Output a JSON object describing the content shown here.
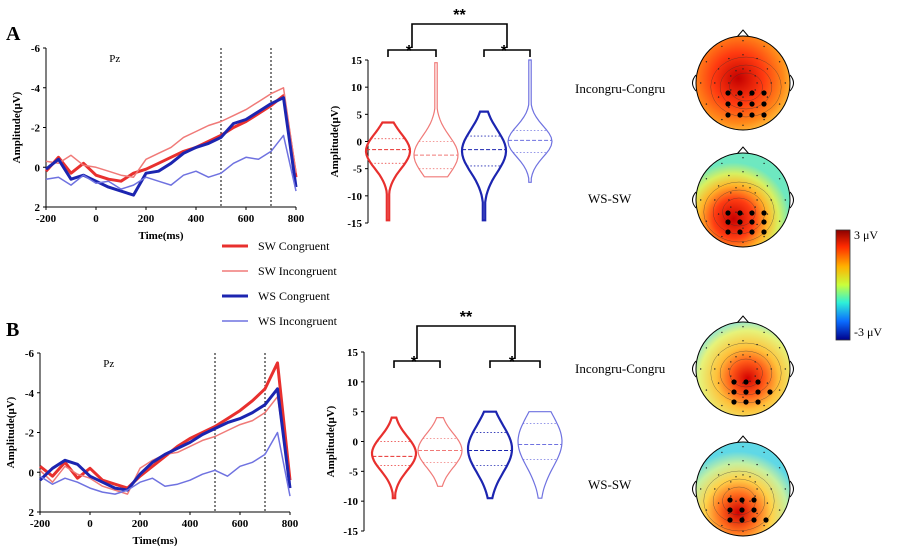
{
  "panels": {
    "A": {
      "letter": "A"
    },
    "B": {
      "letter": "B"
    }
  },
  "erp": {
    "electrode": "Pz",
    "xlabel": "Time(ms)",
    "ylabel": "Amplitude(μV)",
    "x_ticks": [
      "-200",
      "0",
      "200",
      "400",
      "600",
      "800"
    ],
    "y_ticks": [
      "-6",
      "-4",
      "-2",
      "0",
      "2"
    ]
  },
  "violin": {
    "ylabel": "Amplitude(μV)",
    "y_ticks": [
      "15",
      "10",
      "5",
      "0",
      "-5",
      "-10",
      "-15"
    ],
    "sig_outer": "**",
    "sig_inner_left": "*",
    "sig_inner_right": "*"
  },
  "legend": {
    "items": [
      {
        "label": "SW Congruent",
        "color": "#e8302e",
        "width": 3
      },
      {
        "label": "SW Incongruent",
        "color": "#f07a78",
        "width": 1.5
      },
      {
        "label": "WS Congruent",
        "color": "#1c25b0",
        "width": 3
      },
      {
        "label": "WS Incongruent",
        "color": "#6f72e0",
        "width": 1.5
      }
    ]
  },
  "maps": {
    "top_label": "Incongru-Congru",
    "bottom_label": "WS-SW"
  },
  "colorbar": {
    "max_label": "3 μV",
    "min_label": "-3 μV"
  },
  "chart_data": [
    {
      "type": "line",
      "panel": "A",
      "xlim": [
        -200,
        800
      ],
      "ylim": [
        -6,
        2
      ],
      "y_inverted": true,
      "windows_ms": [
        500,
        700
      ],
      "x": [
        -200,
        -150,
        -100,
        -50,
        0,
        50,
        100,
        150,
        200,
        250,
        300,
        350,
        400,
        450,
        500,
        550,
        600,
        650,
        700,
        750,
        800
      ],
      "series": [
        {
          "name": "SW Congruent",
          "values": [
            0.2,
            -0.5,
            0.3,
            -0.2,
            0.4,
            0.6,
            0.7,
            0.3,
            0.1,
            -0.2,
            -0.5,
            -0.8,
            -1.0,
            -1.3,
            -1.6,
            -2.0,
            -2.3,
            -2.7,
            -3.1,
            -3.6,
            0.5
          ]
        },
        {
          "name": "SW Incongruent",
          "values": [
            -0.3,
            -0.2,
            -0.6,
            -0.1,
            0.0,
            0.2,
            0.4,
            0.5,
            -0.4,
            -0.7,
            -1.0,
            -1.5,
            -1.8,
            -2.1,
            -2.3,
            -2.6,
            -2.9,
            -3.3,
            -3.7,
            -4.0,
            0.3
          ]
        },
        {
          "name": "WS Congruent",
          "values": [
            0.1,
            -0.4,
            0.6,
            0.4,
            0.7,
            1.0,
            1.2,
            1.4,
            0.3,
            0.2,
            -0.2,
            -0.7,
            -1.0,
            -1.2,
            -1.5,
            -2.2,
            -2.4,
            -2.8,
            -3.2,
            -3.5,
            1.0
          ]
        },
        {
          "name": "WS Incongruent",
          "values": [
            0.6,
            0.5,
            0.9,
            0.4,
            0.8,
            0.7,
            1.1,
            0.9,
            0.5,
            0.7,
            0.9,
            0.4,
            0.2,
            0.5,
            0.3,
            -0.2,
            -0.5,
            -0.4,
            -0.8,
            -1.6,
            1.2
          ]
        }
      ]
    },
    {
      "type": "violin",
      "panel": "A",
      "categories": [
        "SW Congruent",
        "SW Incongruent",
        "WS Congruent",
        "WS Incongruent"
      ],
      "ylim": [
        -15,
        15
      ],
      "medians": [
        -1.5,
        -2.5,
        -1.5,
        0.2
      ],
      "quartiles": [
        [
          -4,
          0.5
        ],
        [
          -5,
          0
        ],
        [
          -4.5,
          1
        ],
        [
          -2,
          2
        ]
      ],
      "ranges": [
        [
          -14.5,
          3.5
        ],
        [
          -6.5,
          14.5
        ],
        [
          -14.5,
          5.5
        ],
        [
          -7.5,
          15
        ]
      ]
    },
    {
      "type": "line",
      "panel": "B",
      "xlim": [
        -200,
        800
      ],
      "ylim": [
        -6,
        2
      ],
      "y_inverted": true,
      "windows_ms": [
        500,
        700
      ],
      "x": [
        -200,
        -150,
        -100,
        -50,
        0,
        50,
        100,
        150,
        200,
        250,
        300,
        350,
        400,
        450,
        500,
        550,
        600,
        650,
        700,
        750,
        800
      ],
      "series": [
        {
          "name": "SW Congruent",
          "values": [
            -0.3,
            0.2,
            -0.5,
            0.3,
            -0.2,
            0.4,
            0.6,
            0.8,
            0.2,
            -0.3,
            -0.8,
            -1.3,
            -1.7,
            -2.0,
            -2.3,
            -2.7,
            -3.1,
            -3.6,
            -4.2,
            -5.5,
            0.4
          ]
        },
        {
          "name": "SW Incongruent",
          "values": [
            -0.1,
            0.5,
            -0.3,
            0.1,
            0.3,
            0.7,
            0.9,
            1.1,
            -0.2,
            -0.6,
            -0.9,
            -1.0,
            -1.3,
            -1.6,
            -1.8,
            -2.1,
            -2.4,
            -2.6,
            -3.0,
            -3.8,
            0.5
          ]
        },
        {
          "name": "WS Congruent",
          "values": [
            0.4,
            -0.2,
            -0.6,
            -0.4,
            0.2,
            0.5,
            0.8,
            0.9,
            0.1,
            -0.5,
            -0.9,
            -1.2,
            -1.5,
            -1.9,
            -2.2,
            -2.5,
            -2.7,
            -3.0,
            -3.4,
            -4.2,
            0.8
          ]
        },
        {
          "name": "WS Incongruent",
          "values": [
            0.2,
            0.6,
            0.3,
            0.5,
            0.8,
            1.0,
            1.1,
            0.9,
            0.5,
            0.3,
            0.7,
            0.6,
            0.4,
            0.1,
            -0.1,
            0.2,
            -0.3,
            -0.5,
            -0.9,
            -2.0,
            1.2
          ]
        }
      ]
    },
    {
      "type": "violin",
      "panel": "B",
      "categories": [
        "SW Congruent",
        "SW Incongruent",
        "WS Congruent",
        "WS Incongruent"
      ],
      "ylim": [
        -15,
        15
      ],
      "medians": [
        -2.5,
        -1.5,
        -1.5,
        -0.5
      ],
      "quartiles": [
        [
          -4,
          0
        ],
        [
          -3.5,
          0.5
        ],
        [
          -4,
          1.5
        ],
        [
          -3,
          3
        ]
      ],
      "ranges": [
        [
          -9.5,
          4
        ],
        [
          -7.5,
          4
        ],
        [
          -9.5,
          5
        ],
        [
          -9.5,
          5
        ]
      ]
    }
  ]
}
